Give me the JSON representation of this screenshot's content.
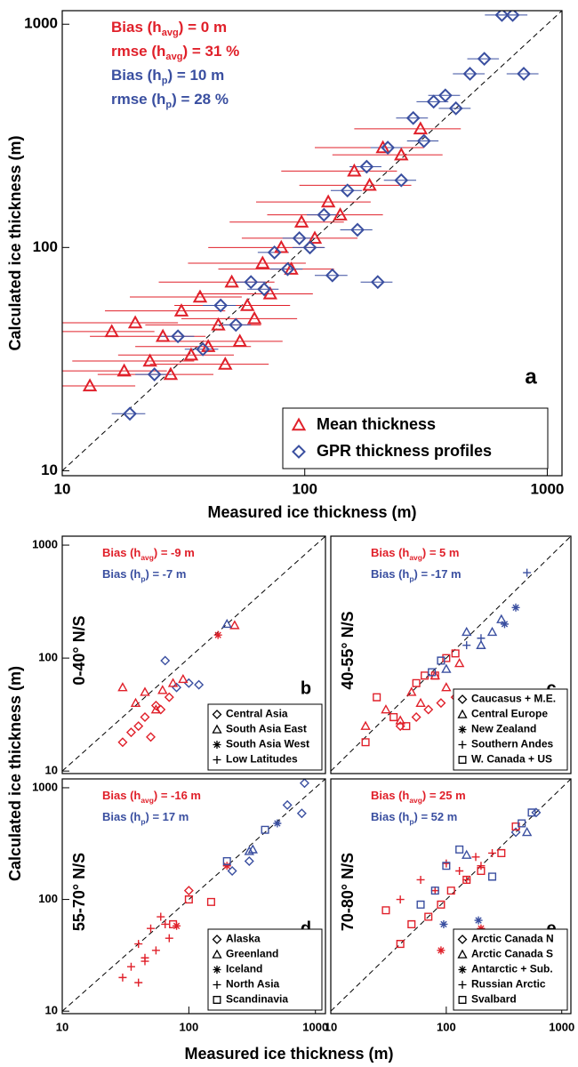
{
  "chart_data": [
    {
      "type": "scatter",
      "log": true,
      "panel": "a",
      "xlabel": "Measured ice thickness (m)",
      "ylabel": "Calculated ice thickness (m)",
      "xlim": [
        10,
        1150
      ],
      "ylim": [
        9.5,
        1150
      ],
      "xticks": [
        10,
        100,
        1000
      ],
      "yticks": [
        10,
        100,
        1000
      ],
      "legend": "lower right",
      "annotations": [
        {
          "text": "Bias (h",
          "sub": "avg",
          "tail": ") =  0 m",
          "color": "#e0202a"
        },
        {
          "text": "rmse (h",
          "sub": "avg",
          "tail": ") = 31 %",
          "color": "#e0202a"
        },
        {
          "text": "Bias (h",
          "sub": "p",
          "tail": ") = 10 m",
          "color": "#3a4fa0"
        },
        {
          "text": "rmse (h",
          "sub": "p",
          "tail": ") = 28 %",
          "color": "#3a4fa0"
        }
      ],
      "series": [
        {
          "name": "Mean thickness",
          "marker": "triangle",
          "color": "#e0202a",
          "x": [
            13,
            16,
            18,
            20,
            23,
            26,
            28,
            31,
            34,
            37,
            40,
            44,
            47,
            50,
            54,
            58,
            62,
            67,
            72,
            80,
            88,
            97,
            110,
            125,
            140,
            160,
            185,
            210,
            250,
            300
          ],
          "values": [
            24,
            42,
            28,
            46,
            31,
            40,
            27,
            52,
            33,
            60,
            36,
            45,
            30,
            70,
            38,
            55,
            48,
            85,
            62,
            100,
            80,
            130,
            110,
            160,
            140,
            220,
            190,
            280,
            260,
            340
          ],
          "xerr": [
            7,
            8,
            9,
            10,
            12,
            13,
            14,
            16,
            17,
            18,
            20,
            22,
            24,
            25,
            27,
            29,
            31,
            34,
            36,
            40,
            44,
            48,
            55,
            62,
            70,
            80,
            90,
            100,
            120,
            140
          ]
        },
        {
          "name": "GPR thickness profiles",
          "marker": "diamond",
          "color": "#3a4fa0",
          "x": [
            19,
            24,
            30,
            38,
            45,
            52,
            60,
            68,
            75,
            85,
            95,
            105,
            120,
            130,
            150,
            165,
            180,
            200,
            220,
            250,
            280,
            310,
            340,
            380,
            420,
            480,
            550,
            650,
            720,
            800
          ],
          "values": [
            18,
            27,
            40,
            35,
            55,
            45,
            70,
            65,
            95,
            80,
            110,
            100,
            140,
            75,
            180,
            120,
            230,
            70,
            280,
            200,
            380,
            300,
            450,
            480,
            420,
            600,
            700,
            1100,
            1100,
            600
          ],
          "xerr": [
            3,
            4,
            5,
            6,
            7,
            8,
            9,
            10,
            11,
            13,
            14,
            16,
            18,
            20,
            22,
            25,
            27,
            30,
            33,
            38,
            42,
            46,
            51,
            57,
            63,
            72,
            82,
            97,
            108,
            120
          ]
        }
      ]
    },
    {
      "type": "scatter",
      "log": true,
      "panel": "b",
      "region": "0-40° N/S",
      "xlim": [
        10,
        1200
      ],
      "ylim": [
        9.5,
        1200
      ],
      "yticks": [
        10,
        100,
        1000
      ],
      "legend": "lower right",
      "annotations": [
        {
          "text": "Bias (h",
          "sub": "avg",
          "tail": ") = -9 m",
          "color": "#e0202a"
        },
        {
          "text": "Bias (h",
          "sub": "p",
          "tail": ") = -7 m",
          "color": "#3a4fa0"
        }
      ],
      "series": [
        {
          "name": "Central Asia",
          "marker": "diamond",
          "color": "#e0202a",
          "x": [
            30,
            35,
            40,
            45,
            50,
            55,
            60,
            70
          ],
          "values": [
            18,
            22,
            25,
            30,
            20,
            38,
            35,
            45
          ]
        },
        {
          "marker": "diamond",
          "color": "#3a4fa0",
          "x": [
            65,
            80,
            100,
            120
          ],
          "values": [
            95,
            55,
            60,
            58
          ]
        },
        {
          "name": "South Asia East",
          "marker": "triangle",
          "color": "#e0202a",
          "x": [
            30,
            38,
            45,
            55,
            62,
            75,
            90,
            230
          ],
          "values": [
            55,
            40,
            50,
            35,
            52,
            60,
            65,
            195
          ]
        },
        {
          "marker": "triangle",
          "color": "#3a4fa0",
          "x": [
            200
          ],
          "values": [
            200
          ]
        },
        {
          "name": "South Asia West",
          "marker": "star",
          "color": "#e0202a",
          "x": [
            170
          ],
          "values": [
            160
          ]
        },
        {
          "name": "Low Latitudes",
          "marker": "plus",
          "color": "#e0202a",
          "x": [],
          "values": []
        }
      ]
    },
    {
      "type": "scatter",
      "log": true,
      "panel": "c",
      "region": "40-55° N/S",
      "xlim": [
        10,
        1200
      ],
      "ylim": [
        9.5,
        1200
      ],
      "legend": "lower right",
      "annotations": [
        {
          "text": "Bias (h",
          "sub": "avg",
          "tail": ") =  5 m",
          "color": "#e0202a"
        },
        {
          "text": "Bias (h",
          "sub": "p",
          "tail": ") = -17 m",
          "color": "#3a4fa0"
        }
      ],
      "series": [
        {
          "name": "Caucasus + M.E.",
          "marker": "diamond",
          "color": "#e0202a",
          "x": [
            40,
            55,
            70,
            90,
            120
          ],
          "values": [
            25,
            30,
            35,
            40,
            45
          ]
        },
        {
          "name": "Central Europe",
          "marker": "triangle",
          "color": "#e0202a",
          "x": [
            20,
            30,
            40,
            50,
            60,
            80,
            100,
            130
          ],
          "values": [
            25,
            35,
            28,
            50,
            40,
            70,
            55,
            90
          ]
        },
        {
          "marker": "triangle",
          "color": "#3a4fa0",
          "x": [
            100,
            150,
            200,
            250,
            300
          ],
          "values": [
            80,
            170,
            130,
            170,
            220
          ]
        },
        {
          "name": "New Zealand",
          "marker": "star",
          "color": "#3a4fa0",
          "x": [
            400,
            320
          ],
          "values": [
            280,
            200
          ]
        },
        {
          "name": "Southern Andes",
          "marker": "plus",
          "color": "#3a4fa0",
          "x": [
            500,
            150,
            200
          ],
          "values": [
            570,
            130,
            150
          ]
        },
        {
          "name": "W. Canada + US",
          "marker": "square",
          "color": "#e0202a",
          "x": [
            20,
            25,
            35,
            45,
            55,
            65,
            80,
            100,
            120
          ],
          "values": [
            18,
            45,
            30,
            25,
            60,
            70,
            70,
            100,
            110
          ]
        },
        {
          "marker": "square",
          "color": "#3a4fa0",
          "x": [
            75,
            90
          ],
          "values": [
            75,
            95
          ]
        }
      ]
    },
    {
      "type": "scatter",
      "log": true,
      "panel": "d",
      "region": "55-70° N/S",
      "xlim": [
        10,
        1200
      ],
      "ylim": [
        9.5,
        1200
      ],
      "xticks": [
        10,
        100,
        1000
      ],
      "yticks": [
        10,
        100,
        1000
      ],
      "legend": "lower right",
      "annotations": [
        {
          "text": "Bias (h",
          "sub": "avg",
          "tail": ") = -16 m",
          "color": "#e0202a"
        },
        {
          "text": "Bias (h",
          "sub": "p",
          "tail": ") = 17 m",
          "color": "#3a4fa0"
        }
      ],
      "series": [
        {
          "name": "Alaska",
          "marker": "diamond",
          "color": "#e0202a",
          "x": [
            100
          ],
          "values": [
            120
          ]
        },
        {
          "marker": "diamond",
          "color": "#3a4fa0",
          "x": [
            220,
            300,
            600,
            780,
            820
          ],
          "values": [
            180,
            220,
            700,
            590,
            1100
          ]
        },
        {
          "name": "Greenland",
          "marker": "triangle",
          "color": "#3a4fa0",
          "x": [
            300,
            320
          ],
          "values": [
            270,
            280
          ]
        },
        {
          "name": "Iceland",
          "marker": "star",
          "color": "#e0202a",
          "x": [
            80,
            200
          ],
          "values": [
            58,
            200
          ]
        },
        {
          "marker": "star",
          "color": "#3a4fa0",
          "x": [
            500
          ],
          "values": [
            480
          ]
        },
        {
          "name": "North Asia",
          "marker": "plus",
          "color": "#e0202a",
          "x": [
            30,
            35,
            40,
            45,
            50,
            55,
            60,
            65,
            70,
            40,
            45
          ],
          "values": [
            20,
            25,
            40,
            30,
            55,
            35,
            70,
            60,
            45,
            18,
            28
          ]
        },
        {
          "name": "Scandinavia",
          "marker": "square",
          "color": "#e0202a",
          "x": [
            75,
            100,
            150
          ],
          "values": [
            60,
            100,
            95
          ]
        },
        {
          "marker": "square",
          "color": "#3a4fa0",
          "x": [
            200,
            400
          ],
          "values": [
            220,
            420
          ]
        }
      ]
    },
    {
      "type": "scatter",
      "log": true,
      "panel": "e",
      "region": "70-80° N/S",
      "xlim": [
        10,
        1200
      ],
      "ylim": [
        9.5,
        1200
      ],
      "xticks": [
        10,
        100,
        1000
      ],
      "legend": "lower right",
      "annotations": [
        {
          "text": "Bias (h",
          "sub": "avg",
          "tail": ") = 25 m",
          "color": "#e0202a"
        },
        {
          "text": "Bias (h",
          "sub": "p",
          "tail": ") = 52 m",
          "color": "#3a4fa0"
        }
      ],
      "series": [
        {
          "name": "Arctic Canada N",
          "marker": "diamond",
          "color": "#3a4fa0",
          "x": [
            400,
            600
          ],
          "values": [
            400,
            600
          ]
        },
        {
          "name": "Arctic Canada S",
          "marker": "triangle",
          "color": "#3a4fa0",
          "x": [
            150,
            500
          ],
          "values": [
            250,
            400
          ]
        },
        {
          "name": "Antarctic + Sub.",
          "marker": "star",
          "color": "#e0202a",
          "x": [
            90,
            200
          ],
          "values": [
            35,
            55
          ]
        },
        {
          "marker": "star",
          "color": "#3a4fa0",
          "x": [
            95,
            190
          ],
          "values": [
            60,
            65
          ]
        },
        {
          "name": "Russian Arctic",
          "marker": "plus",
          "color": "#e0202a",
          "x": [
            40,
            60,
            80,
            100,
            130,
            150,
            180,
            200,
            250
          ],
          "values": [
            100,
            150,
            120,
            210,
            180,
            150,
            240,
            200,
            260
          ]
        },
        {
          "name": "Svalbard",
          "marker": "square",
          "color": "#e0202a",
          "x": [
            30,
            40,
            50,
            70,
            90,
            110,
            150,
            200,
            300,
            400
          ],
          "values": [
            80,
            40,
            60,
            70,
            90,
            120,
            150,
            180,
            260,
            450
          ]
        },
        {
          "marker": "square",
          "color": "#3a4fa0",
          "x": [
            60,
            80,
            100,
            130,
            250,
            450,
            550
          ],
          "values": [
            90,
            120,
            200,
            280,
            160,
            480,
            600
          ]
        }
      ]
    }
  ],
  "shared_axes": {
    "xlabel": "Measured ice thickness (m)",
    "ylabel": "Calculated ice thickness (m)"
  }
}
